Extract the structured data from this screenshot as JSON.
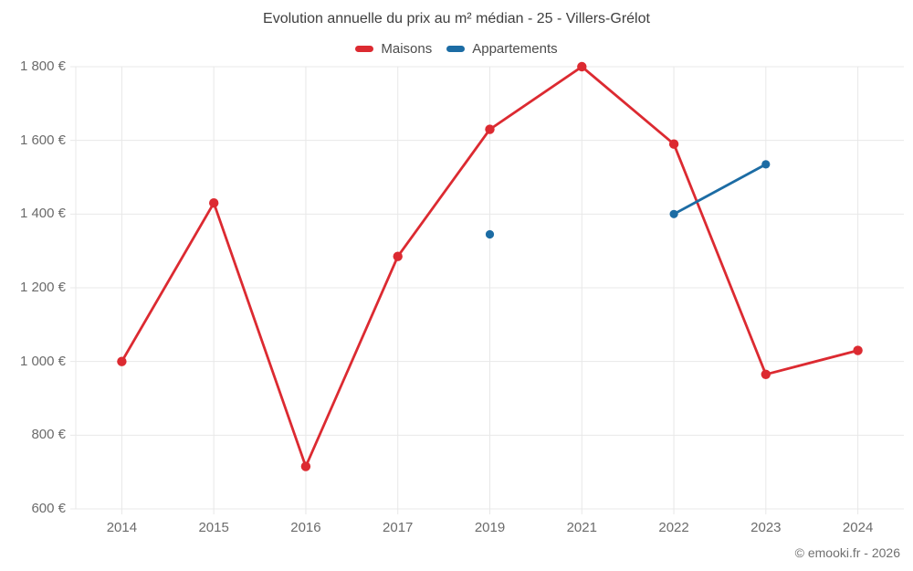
{
  "chart": {
    "copyright": "© emooki.fr - 2026"
  },
  "chart_data": {
    "type": "line",
    "title": "Evolution annuelle du prix au m² médian - 25 - Villers-Grélot",
    "categories": [
      "2014",
      "2015",
      "2016",
      "2017",
      "2019",
      "2021",
      "2022",
      "2023",
      "2024"
    ],
    "series": [
      {
        "name": "Maisons",
        "color": "#dc2a31",
        "values": [
          1000,
          1430,
          715,
          1285,
          1630,
          1800,
          1590,
          965,
          1030
        ]
      },
      {
        "name": "Appartements",
        "color": "#1c6ca4",
        "values": [
          null,
          null,
          null,
          null,
          1345,
          null,
          1400,
          1535,
          null
        ]
      }
    ],
    "ylim": [
      600,
      1800
    ],
    "ytick_step": 200,
    "ytick_labels": [
      "600 €",
      "800 €",
      "1 000 €",
      "1 200 €",
      "1 400 €",
      "1 600 €",
      "1 800 €"
    ],
    "grid": true,
    "legend_position": "top",
    "grid_color": "#e8e8e8",
    "label_color": "#6b6b6b"
  }
}
